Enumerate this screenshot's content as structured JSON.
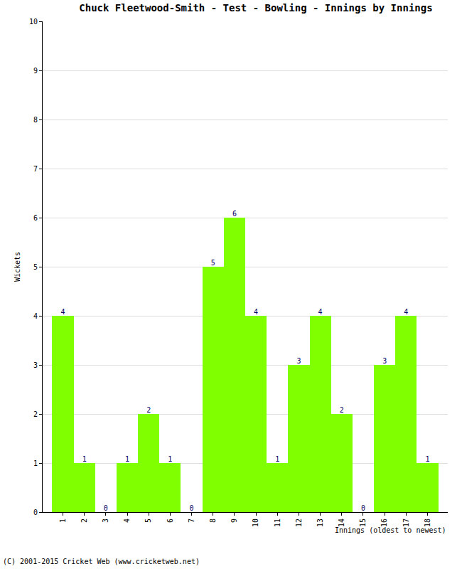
{
  "chart_data": {
    "type": "bar",
    "title": "Chuck Fleetwood-Smith - Test - Bowling - Innings by Innings",
    "x_label": "Innings (oldest to newest)",
    "y_label": "Wickets",
    "annotations": [
      "(C) 2001-2015 Cricket Web (www.cricketweb.net)"
    ],
    "categories": [
      "1",
      "2",
      "3",
      "4",
      "5",
      "6",
      "7",
      "8",
      "9",
      "10",
      "11",
      "12",
      "13",
      "14",
      "15",
      "16",
      "17",
      "18"
    ],
    "values": [
      4,
      1,
      0,
      1,
      2,
      1,
      0,
      5,
      6,
      4,
      1,
      3,
      4,
      2,
      0,
      3,
      4,
      1
    ],
    "color": "#80ff00",
    "ylim": [
      0,
      10
    ],
    "yticks": [
      0,
      1,
      2,
      3,
      4,
      5,
      6,
      7,
      8,
      9,
      10
    ],
    "grid": true,
    "data_labels": true
  }
}
